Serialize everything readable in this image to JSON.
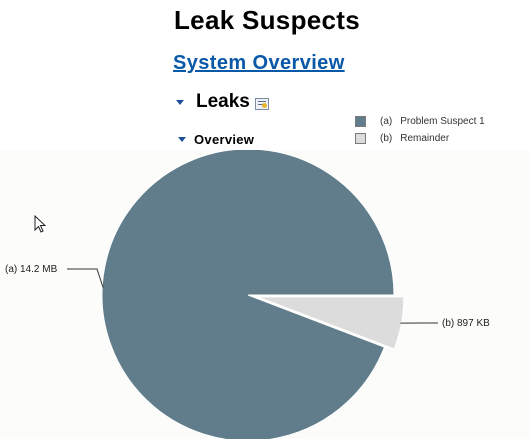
{
  "page": {
    "title": "Leak Suspects"
  },
  "link": {
    "system_overview": "System Overview"
  },
  "leaks": {
    "title": "Leaks"
  },
  "overview": {
    "title": "Overview"
  },
  "icons": {
    "leaks_toggle": "triangle-down-icon",
    "leaks_details": "details-report-icon",
    "overview_toggle": "triangle-down-icon",
    "cursor": "mouse-pointer-icon"
  },
  "chart_data": {
    "type": "pie",
    "slices": [
      {
        "key": "(a)",
        "name": "Problem Suspect 1",
        "label": "14.2 MB",
        "value": 14.2,
        "unit": "MB",
        "color": "#617d8b",
        "exploded": false
      },
      {
        "key": "(b)",
        "name": "Remainder",
        "label": "897 KB",
        "value": 0.876,
        "unit": "MB",
        "color": "#dcdcdc",
        "exploded": true
      }
    ],
    "legend_position": "top-right"
  }
}
